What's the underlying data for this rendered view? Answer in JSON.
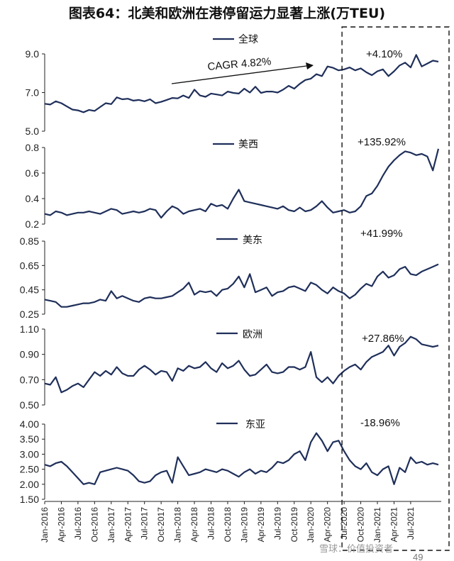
{
  "title": "图表64：北美和欧洲在港停留运力显著上涨(万TEU)",
  "watermark": "雪球：价值投资者",
  "page_number": "49",
  "line_color": "#1f2f5a",
  "highlight_box_style": "dashed",
  "chart_data": [
    {
      "type": "line",
      "series_name": "全球",
      "ylim": [
        5.0,
        9.0
      ],
      "yticks": [
        5.0,
        7.0,
        9.0
      ],
      "ytick_labels": [
        "5.0",
        "7.0",
        "9.0"
      ],
      "change_label": "+4.10%",
      "cagr_label": "CAGR 4.82%",
      "values": [
        6.42,
        6.38,
        6.55,
        6.45,
        6.28,
        6.12,
        6.08,
        5.98,
        6.1,
        6.05,
        6.25,
        6.45,
        6.4,
        6.75,
        6.65,
        6.68,
        6.58,
        6.62,
        6.55,
        6.65,
        6.45,
        6.52,
        6.62,
        6.72,
        6.7,
        6.85,
        6.72,
        7.15,
        6.85,
        6.78,
        6.95,
        6.9,
        6.85,
        7.05,
        6.98,
        6.95,
        7.2,
        7.0,
        7.3,
        6.98,
        7.05,
        7.05,
        7.0,
        7.15,
        7.35,
        7.2,
        7.45,
        7.65,
        7.72,
        7.95,
        7.85,
        8.35,
        8.28,
        8.15,
        8.2,
        8.3,
        8.15,
        8.25,
        8.05,
        7.9,
        8.1,
        8.2,
        7.85,
        8.1,
        8.4,
        8.55,
        8.3,
        8.95,
        8.35,
        8.5,
        8.65,
        8.6
      ]
    },
    {
      "type": "line",
      "series_name": "美西",
      "ylim": [
        0.2,
        0.8
      ],
      "yticks": [
        0.2,
        0.4,
        0.6,
        0.8
      ],
      "ytick_labels": [
        "0.2",
        "0.4",
        "0.6",
        "0.8"
      ],
      "change_label": "+135.92%",
      "values": [
        0.28,
        0.27,
        0.3,
        0.29,
        0.27,
        0.28,
        0.29,
        0.29,
        0.3,
        0.29,
        0.28,
        0.3,
        0.32,
        0.31,
        0.28,
        0.29,
        0.3,
        0.29,
        0.3,
        0.32,
        0.31,
        0.25,
        0.3,
        0.34,
        0.32,
        0.28,
        0.3,
        0.31,
        0.32,
        0.3,
        0.36,
        0.34,
        0.35,
        0.32,
        0.4,
        0.47,
        0.38,
        0.37,
        0.36,
        0.35,
        0.34,
        0.33,
        0.32,
        0.34,
        0.31,
        0.3,
        0.33,
        0.3,
        0.31,
        0.34,
        0.38,
        0.33,
        0.29,
        0.3,
        0.31,
        0.29,
        0.3,
        0.34,
        0.42,
        0.44,
        0.5,
        0.58,
        0.65,
        0.7,
        0.74,
        0.77,
        0.76,
        0.74,
        0.75,
        0.73,
        0.62,
        0.79
      ]
    },
    {
      "type": "line",
      "series_name": "美东",
      "ylim": [
        0.25,
        0.85
      ],
      "yticks": [
        0.25,
        0.45,
        0.65,
        0.85
      ],
      "ytick_labels": [
        "0.25",
        "0.45",
        "0.65",
        "0.85"
      ],
      "change_label": "+41.99%",
      "values": [
        0.37,
        0.36,
        0.35,
        0.31,
        0.31,
        0.32,
        0.33,
        0.34,
        0.34,
        0.35,
        0.37,
        0.36,
        0.44,
        0.38,
        0.4,
        0.38,
        0.36,
        0.35,
        0.38,
        0.39,
        0.38,
        0.38,
        0.39,
        0.4,
        0.43,
        0.46,
        0.51,
        0.41,
        0.44,
        0.43,
        0.44,
        0.4,
        0.45,
        0.46,
        0.5,
        0.56,
        0.47,
        0.58,
        0.43,
        0.45,
        0.47,
        0.4,
        0.43,
        0.44,
        0.47,
        0.48,
        0.46,
        0.44,
        0.51,
        0.49,
        0.45,
        0.42,
        0.47,
        0.44,
        0.42,
        0.38,
        0.41,
        0.46,
        0.5,
        0.48,
        0.56,
        0.6,
        0.55,
        0.57,
        0.62,
        0.64,
        0.58,
        0.57,
        0.6,
        0.62,
        0.64,
        0.66
      ]
    },
    {
      "type": "line",
      "series_name": "欧洲",
      "ylim": [
        0.5,
        1.1
      ],
      "yticks": [
        0.5,
        0.7,
        0.9,
        1.1
      ],
      "ytick_labels": [
        "0.50",
        "0.70",
        "0.90",
        "1.10"
      ],
      "change_label": "+27.86%",
      "values": [
        0.67,
        0.66,
        0.72,
        0.6,
        0.62,
        0.65,
        0.67,
        0.64,
        0.7,
        0.76,
        0.73,
        0.77,
        0.74,
        0.8,
        0.75,
        0.73,
        0.73,
        0.78,
        0.81,
        0.78,
        0.74,
        0.77,
        0.76,
        0.69,
        0.79,
        0.77,
        0.81,
        0.79,
        0.8,
        0.84,
        0.79,
        0.76,
        0.83,
        0.79,
        0.81,
        0.85,
        0.78,
        0.73,
        0.74,
        0.78,
        0.82,
        0.76,
        0.75,
        0.76,
        0.8,
        0.8,
        0.78,
        0.8,
        0.92,
        0.72,
        0.68,
        0.72,
        0.67,
        0.73,
        0.77,
        0.8,
        0.82,
        0.78,
        0.84,
        0.88,
        0.9,
        0.92,
        0.97,
        0.89,
        0.96,
        0.99,
        1.04,
        1.02,
        0.98,
        0.97,
        0.96,
        0.97
      ]
    },
    {
      "type": "line",
      "series_name": "东亚",
      "ylim": [
        1.5,
        4.0
      ],
      "yticks": [
        1.5,
        2.0,
        2.5,
        3.0,
        3.5,
        4.0
      ],
      "ytick_labels": [
        "1.50",
        "2.00",
        "2.50",
        "3.00",
        "3.50",
        "4.00"
      ],
      "change_label": "-18.96%",
      "values": [
        2.65,
        2.6,
        2.7,
        2.75,
        2.6,
        2.4,
        2.2,
        2.0,
        2.05,
        2.0,
        2.4,
        2.45,
        2.5,
        2.55,
        2.5,
        2.45,
        2.3,
        2.1,
        2.05,
        2.1,
        2.3,
        2.4,
        2.45,
        2.05,
        2.9,
        2.6,
        2.3,
        2.35,
        2.4,
        2.5,
        2.45,
        2.4,
        2.5,
        2.45,
        2.35,
        2.25,
        2.4,
        2.5,
        2.35,
        2.45,
        2.4,
        2.55,
        2.75,
        2.7,
        2.8,
        3.0,
        3.1,
        2.8,
        3.4,
        3.7,
        3.45,
        3.1,
        3.4,
        3.45,
        3.1,
        2.8,
        2.6,
        2.5,
        2.7,
        2.4,
        2.3,
        2.5,
        2.6,
        2.0,
        2.55,
        2.4,
        2.9,
        2.7,
        2.75,
        2.65,
        2.7,
        2.65
      ]
    }
  ],
  "shared_axis": {
    "x_start": "Jan-2016",
    "x_end": "Dec-2021",
    "highlight_range": [
      "Jul-2020",
      "Dec-2021"
    ],
    "xtick_labels": [
      "Jan-2016",
      "Apr-2016",
      "Jul-2016",
      "Oct-2016",
      "Jan-2017",
      "Apr-2017",
      "Jul-2017",
      "Oct-2017",
      "Jan-2018",
      "Apr-2018",
      "Jul-2018",
      "Oct-2018",
      "Jan-2019",
      "Apr-2019",
      "Jul-2019",
      "Oct-2019",
      "Jan-2020",
      "Apr-2020",
      "Jul-2020",
      "Oct-2020",
      "Jan-2021",
      "Apr-2021",
      "Jul-2021"
    ]
  }
}
